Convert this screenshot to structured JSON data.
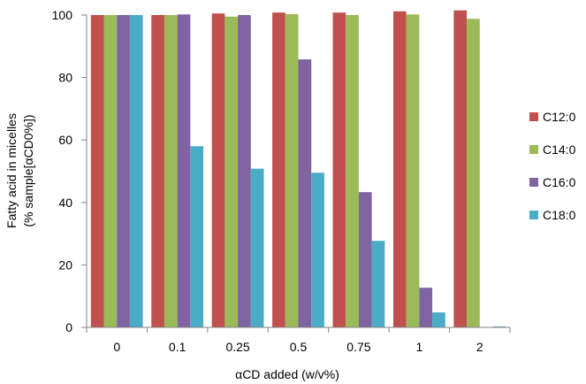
{
  "chart_data": {
    "type": "bar",
    "title": "",
    "xlabel": "αCD added (w/v%)",
    "ylabel_line1": "Fatty acid in micelles",
    "ylabel_line2": "(% sample[αCD0%])",
    "ylim": [
      0,
      100
    ],
    "yticks": [
      0,
      20,
      40,
      60,
      80,
      100
    ],
    "grid": false,
    "legend_position": "right",
    "categories": [
      "0",
      "0.1",
      "0.25",
      "0.5",
      "0.75",
      "1",
      "2"
    ],
    "series": [
      {
        "name": "C12:0",
        "color": "#c0504d",
        "values": [
          100,
          100,
          100.5,
          100.8,
          100.8,
          101.2,
          101.5
        ]
      },
      {
        "name": "C14:0",
        "color": "#9bbb59",
        "values": [
          100,
          100,
          99.5,
          100.3,
          100,
          100.2,
          98.8
        ]
      },
      {
        "name": "C16:0",
        "color": "#8064a2",
        "values": [
          100,
          100.2,
          100,
          85.8,
          43.3,
          12.7,
          0
        ]
      },
      {
        "name": "C18:0",
        "color": "#4bacc6",
        "values": [
          100,
          58,
          50.8,
          49.5,
          27.7,
          4.8,
          0.3
        ]
      }
    ]
  }
}
